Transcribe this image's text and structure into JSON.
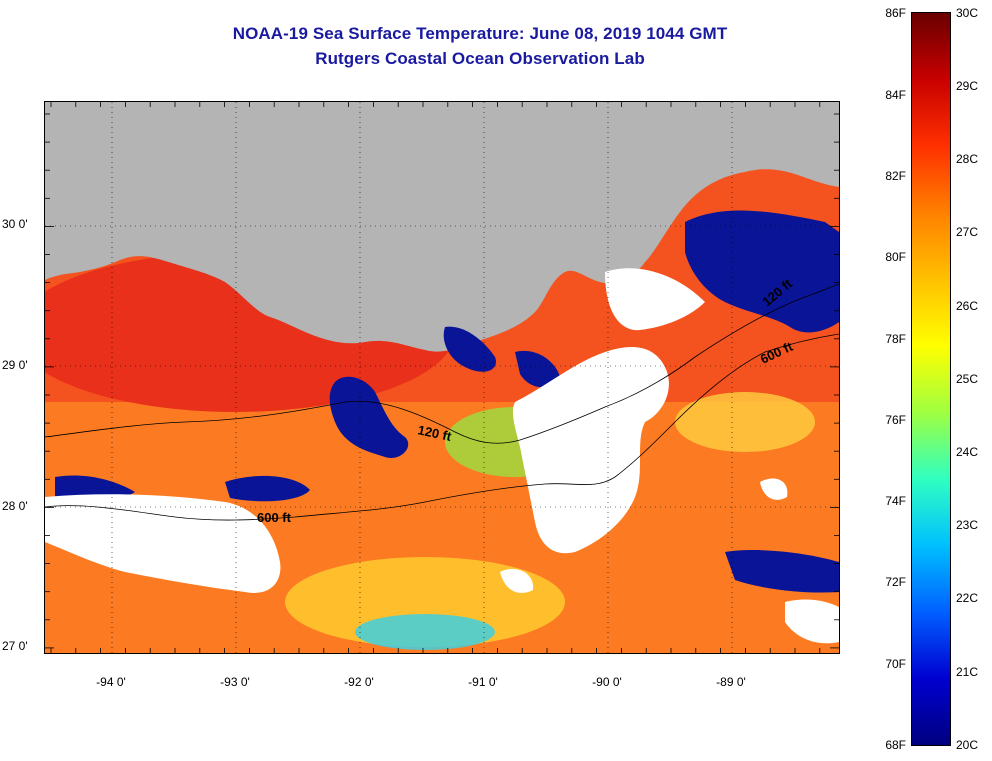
{
  "title": {
    "line1": "NOAA-19 Sea Surface Temperature:  June 08, 2019 1044 GMT",
    "line2": "Rutgers Coastal Ocean Observation Lab"
  },
  "axes": {
    "latitude_labels": [
      "30 0'",
      "29 0'",
      "28 0'",
      "27 0'"
    ],
    "longitude_labels": [
      "-94 0'",
      "-93 0'",
      "-92 0'",
      "-91 0'",
      "-90 0'",
      "-89 0'"
    ]
  },
  "contours": {
    "label_120_west": "120 ft",
    "label_600_west": "600 ft",
    "label_600_east": "600 ft",
    "label_120_east": "120 ft"
  },
  "colorbar": {
    "fahrenheit_labels": [
      "86F",
      "84F",
      "82F",
      "80F",
      "78F",
      "76F",
      "74F",
      "72F",
      "70F",
      "68F"
    ],
    "celsius_labels": [
      "30C",
      "29C",
      "28C",
      "27C",
      "26C",
      "25C",
      "24C",
      "23C",
      "22C",
      "21C",
      "20C"
    ],
    "colors": [
      "#6a0000",
      "#c80000",
      "#ff3000",
      "#ff8000",
      "#ffc000",
      "#ffff00",
      "#a0ff40",
      "#30ffc0",
      "#00c0ff",
      "#0060ff",
      "#0000d0",
      "#000080"
    ]
  },
  "colors": {
    "land": "#b4b4b4",
    "cloud": "#ffffff",
    "warm_water": "#f0421c",
    "cool_water": "#ff9a20",
    "cold_patch": "#0a1496",
    "title": "#1a1aa0"
  }
}
